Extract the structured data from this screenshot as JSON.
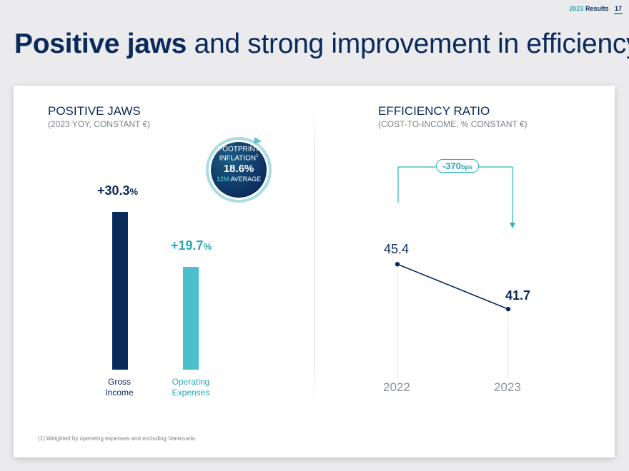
{
  "header": {
    "year": "2023",
    "label": "Results",
    "page": "17"
  },
  "title": {
    "bold": "Positive jaws",
    "rest": " and strong improvement in efficiency"
  },
  "left": {
    "title": "POSITIVE JAWS",
    "subtitle": "(2023 YOY, CONSTANT €)",
    "badge": {
      "line1": "FOOTPRINT",
      "line2": "INFLATION",
      "sup": "1",
      "value": "18.6%",
      "accent": "12M",
      "line4": " AVERAGE"
    }
  },
  "right": {
    "title": "EFFICIENCY RATIO",
    "subtitle": "(COST-TO-INCOME, % CONSTANT €)",
    "change": {
      "value": "-370",
      "unit": "bps"
    }
  },
  "footnote": "(1) Weighted by operating expenses and excluding Venezuela.",
  "colors": {
    "navy": "#0a2a5c",
    "teal": "#4bbfcc",
    "teal_text": "#2aa8b5"
  },
  "chart_data": [
    {
      "type": "bar",
      "title": "POSITIVE JAWS",
      "categories": [
        "Gross Income",
        "Operating Expenses"
      ],
      "category_lines": [
        [
          "Gross",
          "Income"
        ],
        [
          "Operating",
          "Expenses"
        ]
      ],
      "values": [
        30.3,
        19.7
      ],
      "labels": [
        {
          "num": "+30.3",
          "unit": "%"
        },
        {
          "num": "+19.7",
          "unit": "%"
        }
      ],
      "ylim": [
        0,
        30.3
      ]
    },
    {
      "type": "line",
      "title": "EFFICIENCY RATIO",
      "x": [
        "2022",
        "2023"
      ],
      "values": [
        45.4,
        41.7
      ],
      "labels": [
        "45.4",
        "41.7"
      ],
      "ylim": [
        36,
        48
      ]
    }
  ]
}
